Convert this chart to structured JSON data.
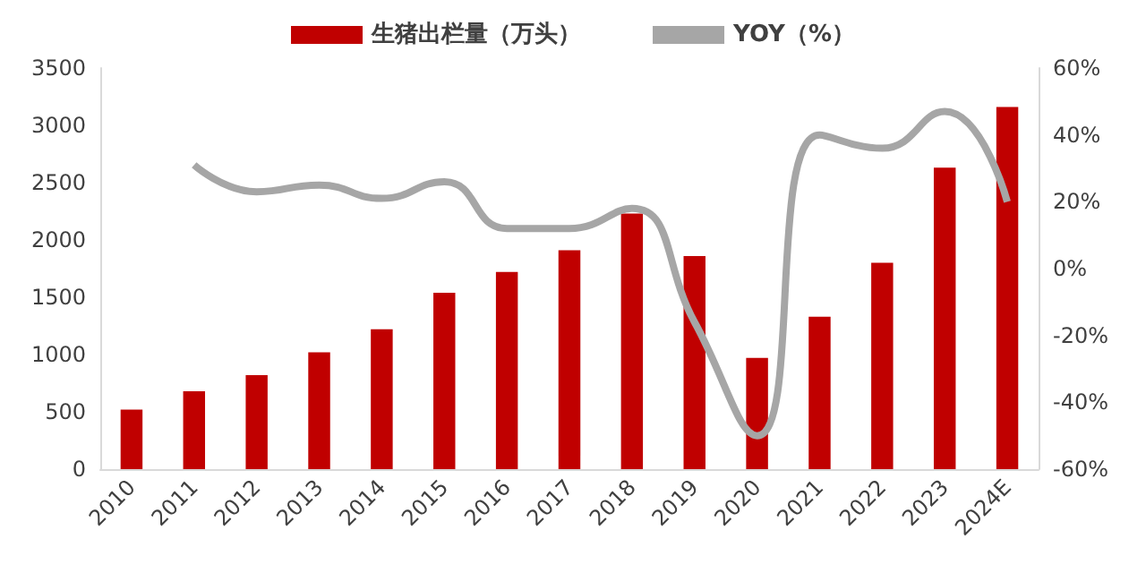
{
  "chart_data": {
    "type": "bar",
    "categories": [
      "2010",
      "2011",
      "2012",
      "2013",
      "2014",
      "2015",
      "2016",
      "2017",
      "2018",
      "2019",
      "2020",
      "2021",
      "2022",
      "2023",
      "2024E"
    ],
    "series": [
      {
        "name": "生猪出栏量（万头）",
        "color": "#c00000",
        "values": [
          520,
          680,
          820,
          1020,
          1220,
          1540,
          1720,
          1910,
          2230,
          1860,
          970,
          1330,
          1800,
          2630,
          3160
        ]
      },
      {
        "name": "YOY（%）",
        "type": "line",
        "axis": "y2",
        "color": "#a6a6a6",
        "values": [
          null,
          31,
          23,
          25,
          21,
          26,
          12,
          12,
          18,
          -16,
          -50,
          40,
          36,
          47,
          20
        ]
      }
    ],
    "ylim": [
      0,
      3500
    ],
    "yticks": [
      0,
      500,
      1000,
      1500,
      2000,
      2500,
      3000,
      3500
    ],
    "y2lim": [
      -60,
      60
    ],
    "y2ticks": [
      {
        "value": -60,
        "label": "-60%"
      },
      {
        "value": -40,
        "label": "-40%"
      },
      {
        "value": -20,
        "label": "-20%"
      },
      {
        "value": 0,
        "label": "0%"
      },
      {
        "value": 20,
        "label": "20%"
      },
      {
        "value": 40,
        "label": "40%"
      },
      {
        "value": 60,
        "label": "60%"
      }
    ],
    "legend": "top",
    "grid": false,
    "marker": "none"
  }
}
